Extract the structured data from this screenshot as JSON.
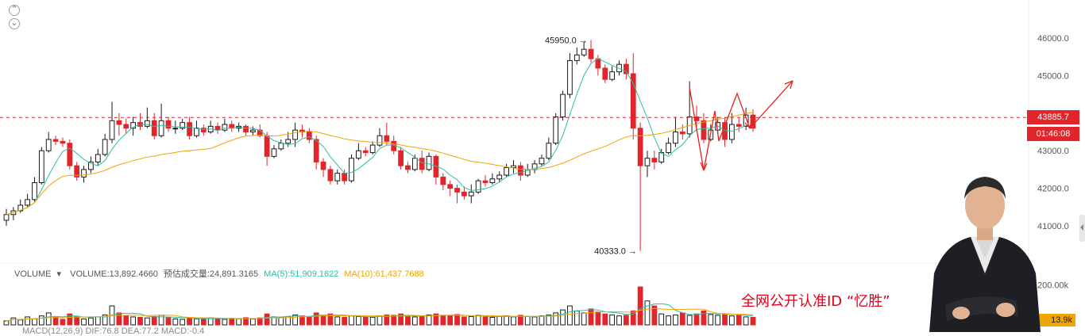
{
  "controls": {
    "collapse_up": "⌃",
    "collapse_down": "⌄"
  },
  "price_axis": {
    "ticks": [
      "46000.0",
      "45000.0",
      "43000.0",
      "42000.0",
      "41000.0"
    ]
  },
  "current_price": {
    "value": "43885.7",
    "countdown": "01:46:08"
  },
  "annotations": {
    "high_label": "45950.0",
    "low_label": "40333.0"
  },
  "volume_panel": {
    "toggle": "VOLUME",
    "volume_text": "VOLUME:13,892.4660",
    "estimated_text": "预估成交量:24,891.3165",
    "ma5_text": "MA(5):51,909.1622",
    "ma10_text": "MA(10):61,437.7688",
    "axis_tick": "200.00k",
    "current_tag": "13.9k"
  },
  "macd_panel": {
    "text": "MACD(12,26,9)  DIF:76.8  DEA:77.2  MACD:-0.4"
  },
  "promo": {
    "text": "全网公开认准ID “忆胜”"
  },
  "colors": {
    "up": "#1a1a1a",
    "down": "#e0262b",
    "ma_fast": "#2bbfa4",
    "ma_slow": "#f0a500",
    "price_line": "#e0262b",
    "arrows": "#e8211d"
  },
  "chart_data": {
    "type": "candlestick",
    "ylim": [
      40000,
      46500
    ],
    "yticks": [
      41000,
      42000,
      43000,
      45000,
      46000
    ],
    "current_price": 43885.7,
    "high": 45950.0,
    "low": 40333.0,
    "candles": [
      [
        41150,
        41300,
        41000,
        41450
      ],
      [
        41300,
        41400,
        41150,
        41500
      ],
      [
        41400,
        41550,
        41350,
        41700
      ],
      [
        41550,
        41700,
        41500,
        41850
      ],
      [
        41700,
        42150,
        41650,
        42300
      ],
      [
        42150,
        43000,
        42100,
        43100
      ],
      [
        43000,
        43300,
        42950,
        43500
      ],
      [
        43300,
        43250,
        43150,
        43400
      ],
      [
        43250,
        43200,
        43100,
        43350
      ],
      [
        43200,
        42600,
        42500,
        43300
      ],
      [
        42600,
        42300,
        42200,
        42700
      ],
      [
        42300,
        42500,
        42150,
        42600
      ],
      [
        42500,
        42700,
        42400,
        42850
      ],
      [
        42700,
        42900,
        42600,
        43050
      ],
      [
        42900,
        43300,
        42850,
        43450
      ],
      [
        43300,
        43800,
        43200,
        44300
      ],
      [
        43800,
        43700,
        43400,
        44000
      ],
      [
        43700,
        43600,
        43450,
        43850
      ],
      [
        43600,
        43750,
        43400,
        43900
      ],
      [
        43750,
        43650,
        43550,
        44000
      ],
      [
        43650,
        43800,
        43600,
        44150
      ],
      [
        43800,
        43400,
        43300,
        44000
      ],
      [
        43400,
        43800,
        43350,
        44250
      ],
      [
        43800,
        43600,
        43500,
        43900
      ],
      [
        43600,
        43600,
        43450,
        43800
      ],
      [
        43600,
        43750,
        43550,
        43850
      ],
      [
        43750,
        43400,
        43300,
        43900
      ],
      [
        43400,
        43600,
        43350,
        43800
      ],
      [
        43600,
        43500,
        43400,
        43700
      ],
      [
        43500,
        43650,
        43450,
        43800
      ],
      [
        43650,
        43550,
        43450,
        43750
      ],
      [
        43550,
        43700,
        43500,
        43850
      ],
      [
        43700,
        43600,
        43500,
        43800
      ],
      [
        43600,
        43650,
        43500,
        43750
      ],
      [
        43650,
        43500,
        43400,
        43700
      ],
      [
        43500,
        43550,
        43400,
        43650
      ],
      [
        43550,
        43400,
        43350,
        43700
      ],
      [
        43400,
        42850,
        42600,
        43500
      ],
      [
        42850,
        43050,
        42800,
        43150
      ],
      [
        43050,
        43200,
        43000,
        43300
      ],
      [
        43200,
        43300,
        43100,
        43500
      ],
      [
        43300,
        43550,
        43100,
        43750
      ],
      [
        43550,
        43500,
        43350,
        43700
      ],
      [
        43500,
        43300,
        43200,
        43600
      ],
      [
        43300,
        42700,
        42500,
        43400
      ],
      [
        42700,
        42500,
        42300,
        42800
      ],
      [
        42500,
        42200,
        42100,
        42600
      ],
      [
        42200,
        42400,
        42100,
        42500
      ],
      [
        42400,
        42200,
        42100,
        42500
      ],
      [
        42200,
        42800,
        42150,
        42900
      ],
      [
        42800,
        43000,
        42750,
        43200
      ],
      [
        43000,
        42950,
        42850,
        43100
      ],
      [
        42950,
        43150,
        42900,
        43250
      ],
      [
        43150,
        43400,
        43100,
        43600
      ],
      [
        43400,
        43250,
        43150,
        43750
      ],
      [
        43250,
        43000,
        42900,
        43400
      ],
      [
        43000,
        42600,
        42500,
        43100
      ],
      [
        42600,
        42500,
        42400,
        42700
      ],
      [
        42500,
        42800,
        42450,
        42900
      ],
      [
        42800,
        42500,
        42400,
        43000
      ],
      [
        42500,
        42850,
        42450,
        42950
      ],
      [
        42850,
        42300,
        42100,
        42900
      ],
      [
        42300,
        42100,
        41950,
        42400
      ],
      [
        42100,
        42000,
        41800,
        42200
      ],
      [
        42000,
        41900,
        41600,
        42100
      ],
      [
        41900,
        41800,
        41700,
        42050
      ],
      [
        41800,
        41900,
        41600,
        42100
      ],
      [
        41900,
        42200,
        41850,
        42250
      ],
      [
        42200,
        42150,
        42050,
        42350
      ],
      [
        42150,
        42250,
        42100,
        42400
      ],
      [
        42250,
        42350,
        42150,
        42450
      ],
      [
        42350,
        42550,
        42300,
        42650
      ],
      [
        42550,
        42600,
        42400,
        42750
      ],
      [
        42600,
        42350,
        42200,
        42700
      ],
      [
        42350,
        42500,
        42300,
        42650
      ],
      [
        42500,
        42650,
        42400,
        42750
      ],
      [
        42650,
        42800,
        42600,
        42900
      ],
      [
        42800,
        43200,
        42750,
        43350
      ],
      [
        43200,
        43900,
        43150,
        44000
      ],
      [
        43900,
        44500,
        43800,
        44600
      ],
      [
        44500,
        45400,
        44400,
        45600
      ],
      [
        45400,
        45550,
        45300,
        45750
      ],
      [
        45550,
        45700,
        45500,
        45900
      ],
      [
        45700,
        45450,
        45350,
        45950
      ],
      [
        45450,
        45200,
        45000,
        45550
      ],
      [
        45200,
        44900,
        44800,
        45300
      ],
      [
        44900,
        45100,
        44850,
        45250
      ],
      [
        45100,
        45300,
        45000,
        45400
      ],
      [
        45300,
        45050,
        44900,
        45450
      ],
      [
        45050,
        43600,
        43300,
        45600
      ],
      [
        43600,
        42600,
        40333,
        43750
      ],
      [
        42600,
        42800,
        42300,
        43000
      ],
      [
        42800,
        42700,
        42500,
        43000
      ],
      [
        42700,
        42950,
        42650,
        43050
      ],
      [
        42950,
        43200,
        42900,
        43350
      ],
      [
        43200,
        43500,
        43100,
        43900
      ],
      [
        43500,
        43450,
        43300,
        43700
      ],
      [
        43450,
        43900,
        43350,
        44850
      ],
      [
        43900,
        43800,
        43500,
        44200
      ],
      [
        43800,
        43300,
        43200,
        44000
      ],
      [
        43300,
        43550,
        43250,
        43700
      ],
      [
        43550,
        43750,
        43450,
        43900
      ],
      [
        43750,
        43300,
        43100,
        43900
      ],
      [
        43300,
        43700,
        43200,
        44000
      ],
      [
        43700,
        43650,
        43500,
        43900
      ],
      [
        43650,
        43950,
        43550,
        44150
      ],
      [
        43950,
        43600,
        43500,
        44100
      ]
    ],
    "volumes": [
      20,
      35,
      25,
      40,
      30,
      45,
      60,
      38,
      28,
      55,
      42,
      30,
      35,
      40,
      50,
      95,
      60,
      45,
      40,
      38,
      35,
      42,
      48,
      36,
      30,
      28,
      34,
      30,
      32,
      35,
      30,
      28,
      33,
      30,
      36,
      30,
      35,
      55,
      40,
      38,
      42,
      50,
      45,
      40,
      60,
      48,
      55,
      40,
      38,
      45,
      42,
      40,
      38,
      45,
      50,
      48,
      55,
      42,
      40,
      45,
      50,
      55,
      48,
      45,
      52,
      40,
      42,
      48,
      40,
      38,
      42,
      45,
      40,
      48,
      42,
      40,
      45,
      50,
      60,
      75,
      95,
      70,
      60,
      80,
      65,
      55,
      50,
      45,
      48,
      70,
      190,
      120,
      95,
      55,
      45,
      50,
      60,
      48,
      55,
      70,
      52,
      48,
      55,
      45,
      50,
      40,
      38
    ],
    "volume_ylim": [
      0,
      230
    ],
    "volume_yticks": [
      200
    ]
  }
}
